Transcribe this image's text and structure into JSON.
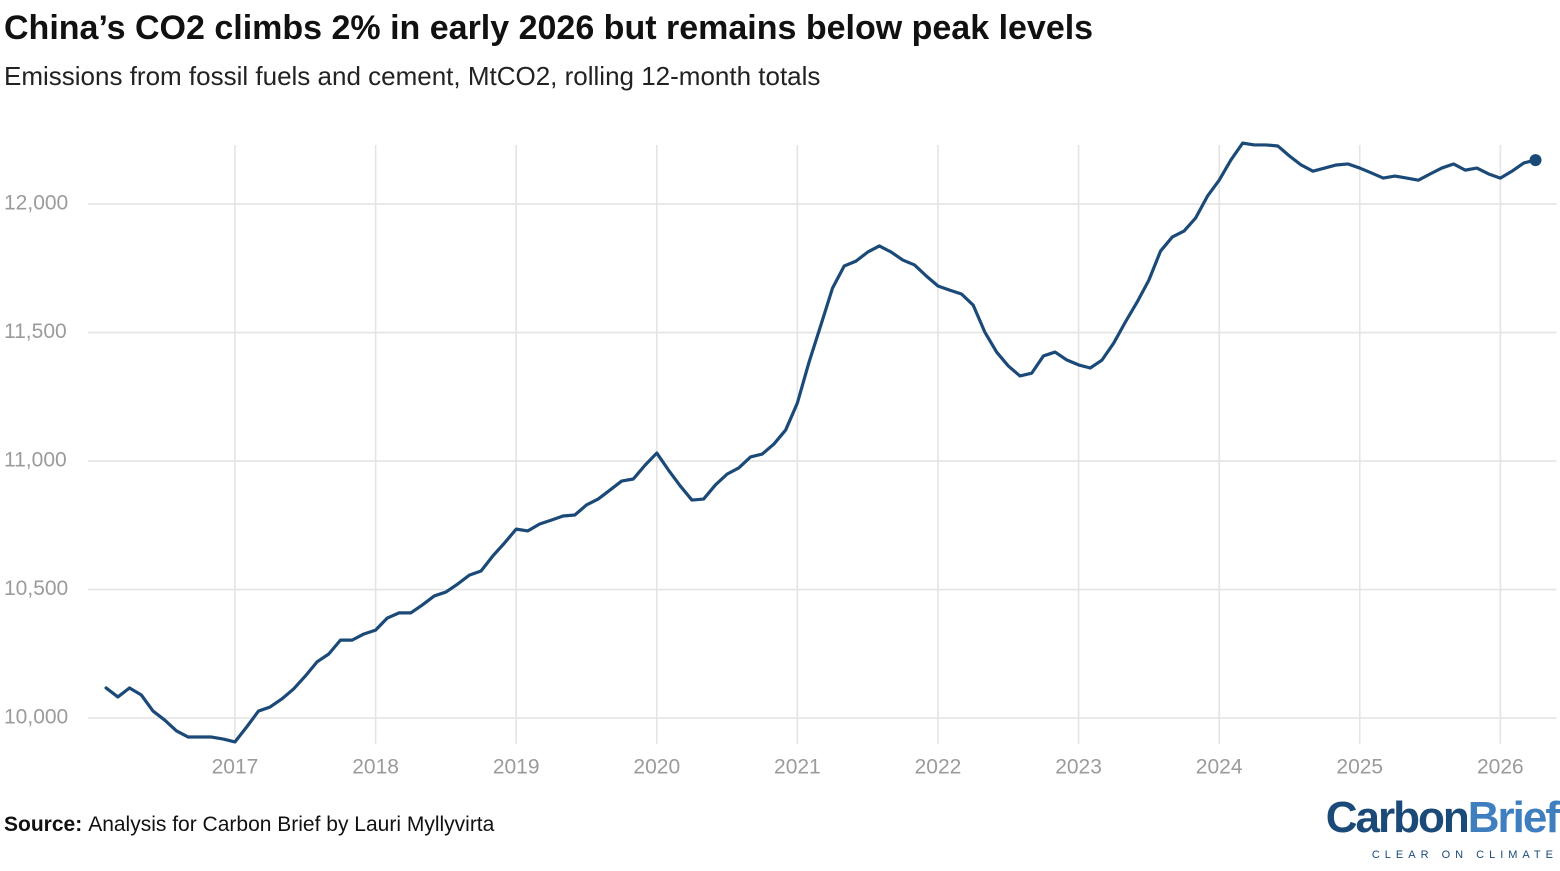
{
  "chart_data": {
    "type": "line",
    "title": "China’s CO2 climbs 2% in early 2026 but remains below peak levels",
    "subtitle": "Emissions from fossil fuels and cement, MtCO2, rolling 12-month totals",
    "x": [
      2016.083,
      2016.167,
      2016.25,
      2016.333,
      2016.417,
      2016.5,
      2016.583,
      2016.667,
      2016.75,
      2016.833,
      2016.917,
      2017.0,
      2017.083,
      2017.167,
      2017.25,
      2017.333,
      2017.417,
      2017.5,
      2017.583,
      2017.667,
      2017.75,
      2017.833,
      2017.917,
      2018.0,
      2018.083,
      2018.167,
      2018.25,
      2018.333,
      2018.417,
      2018.5,
      2018.583,
      2018.667,
      2018.75,
      2018.833,
      2018.917,
      2019.0,
      2019.083,
      2019.167,
      2019.25,
      2019.333,
      2019.417,
      2019.5,
      2019.583,
      2019.667,
      2019.75,
      2019.833,
      2019.917,
      2020.0,
      2020.083,
      2020.167,
      2020.25,
      2020.333,
      2020.417,
      2020.5,
      2020.583,
      2020.667,
      2020.75,
      2020.833,
      2020.917,
      2021.0,
      2021.083,
      2021.167,
      2021.25,
      2021.333,
      2021.417,
      2021.5,
      2021.583,
      2021.667,
      2021.75,
      2021.833,
      2021.917,
      2022.0,
      2022.083,
      2022.167,
      2022.25,
      2022.333,
      2022.417,
      2022.5,
      2022.583,
      2022.667,
      2022.75,
      2022.833,
      2022.917,
      2023.0,
      2023.083,
      2023.167,
      2023.25,
      2023.333,
      2023.417,
      2023.5,
      2023.583,
      2023.667,
      2023.75,
      2023.833,
      2023.917,
      2024.0,
      2024.083,
      2024.167,
      2024.25,
      2024.333,
      2024.417,
      2024.5,
      2024.583,
      2024.667,
      2024.75,
      2024.833,
      2024.917,
      2025.0,
      2025.083,
      2025.167,
      2025.25,
      2025.333,
      2025.417,
      2025.5,
      2025.583,
      2025.667,
      2025.75,
      2025.833,
      2025.917,
      2026.0,
      2026.083,
      2026.167,
      2026.25
    ],
    "values": [
      10117,
      10082,
      10117,
      10090,
      10027,
      9992,
      9950,
      9926,
      9926,
      9926,
      9918,
      9907,
      9965,
      10027,
      10043,
      10074,
      10113,
      10163,
      10218,
      10249,
      10303,
      10303,
      10327,
      10342,
      10389,
      10409,
      10409,
      10440,
      10475,
      10490,
      10521,
      10556,
      10572,
      10630,
      10681,
      10735,
      10728,
      10755,
      10770,
      10786,
      10790,
      10829,
      10852,
      10887,
      10922,
      10930,
      10984,
      11031,
      10965,
      10903,
      10848,
      10852,
      10907,
      10949,
      10973,
      11016,
      11027,
      11066,
      11121,
      11226,
      11385,
      11529,
      11673,
      11759,
      11778,
      11813,
      11837,
      11813,
      11782,
      11763,
      11720,
      11681,
      11665,
      11650,
      11607,
      11502,
      11424,
      11370,
      11331,
      11342,
      11409,
      11424,
      11393,
      11374,
      11362,
      11393,
      11459,
      11541,
      11619,
      11704,
      11817,
      11872,
      11895,
      11946,
      12031,
      12093,
      12171,
      12237,
      12230,
      12230,
      12226,
      12187,
      12152,
      12128,
      12140,
      12152,
      12156,
      12140,
      12121,
      12101,
      12109,
      12101,
      12093,
      12117,
      12140,
      12156,
      12132,
      12140,
      12117,
      12101,
      12128,
      12160,
      12171
    ],
    "color": "#1b4a78",
    "xlim": [
      2016.0,
      2026.4
    ],
    "xticks": [
      2017,
      2018,
      2019,
      2020,
      2021,
      2022,
      2023,
      2024,
      2025,
      2026
    ],
    "ylim": [
      9900,
      12250
    ],
    "yticks": [
      {
        "value": 10000,
        "label": "10,000"
      },
      {
        "value": 10500,
        "label": "10,500"
      },
      {
        "value": 11000,
        "label": "11,000"
      },
      {
        "value": 11500,
        "label": "11,500"
      },
      {
        "value": 12000,
        "label": "12,000"
      }
    ],
    "grid": true
  },
  "source": {
    "label": "Source:",
    "text": "Analysis for Carbon Brief by Lauri Myllyvirta"
  },
  "logo": {
    "first": "Carbon",
    "second": "Brief",
    "tagline": "CLEAR ON CLIMATE"
  }
}
